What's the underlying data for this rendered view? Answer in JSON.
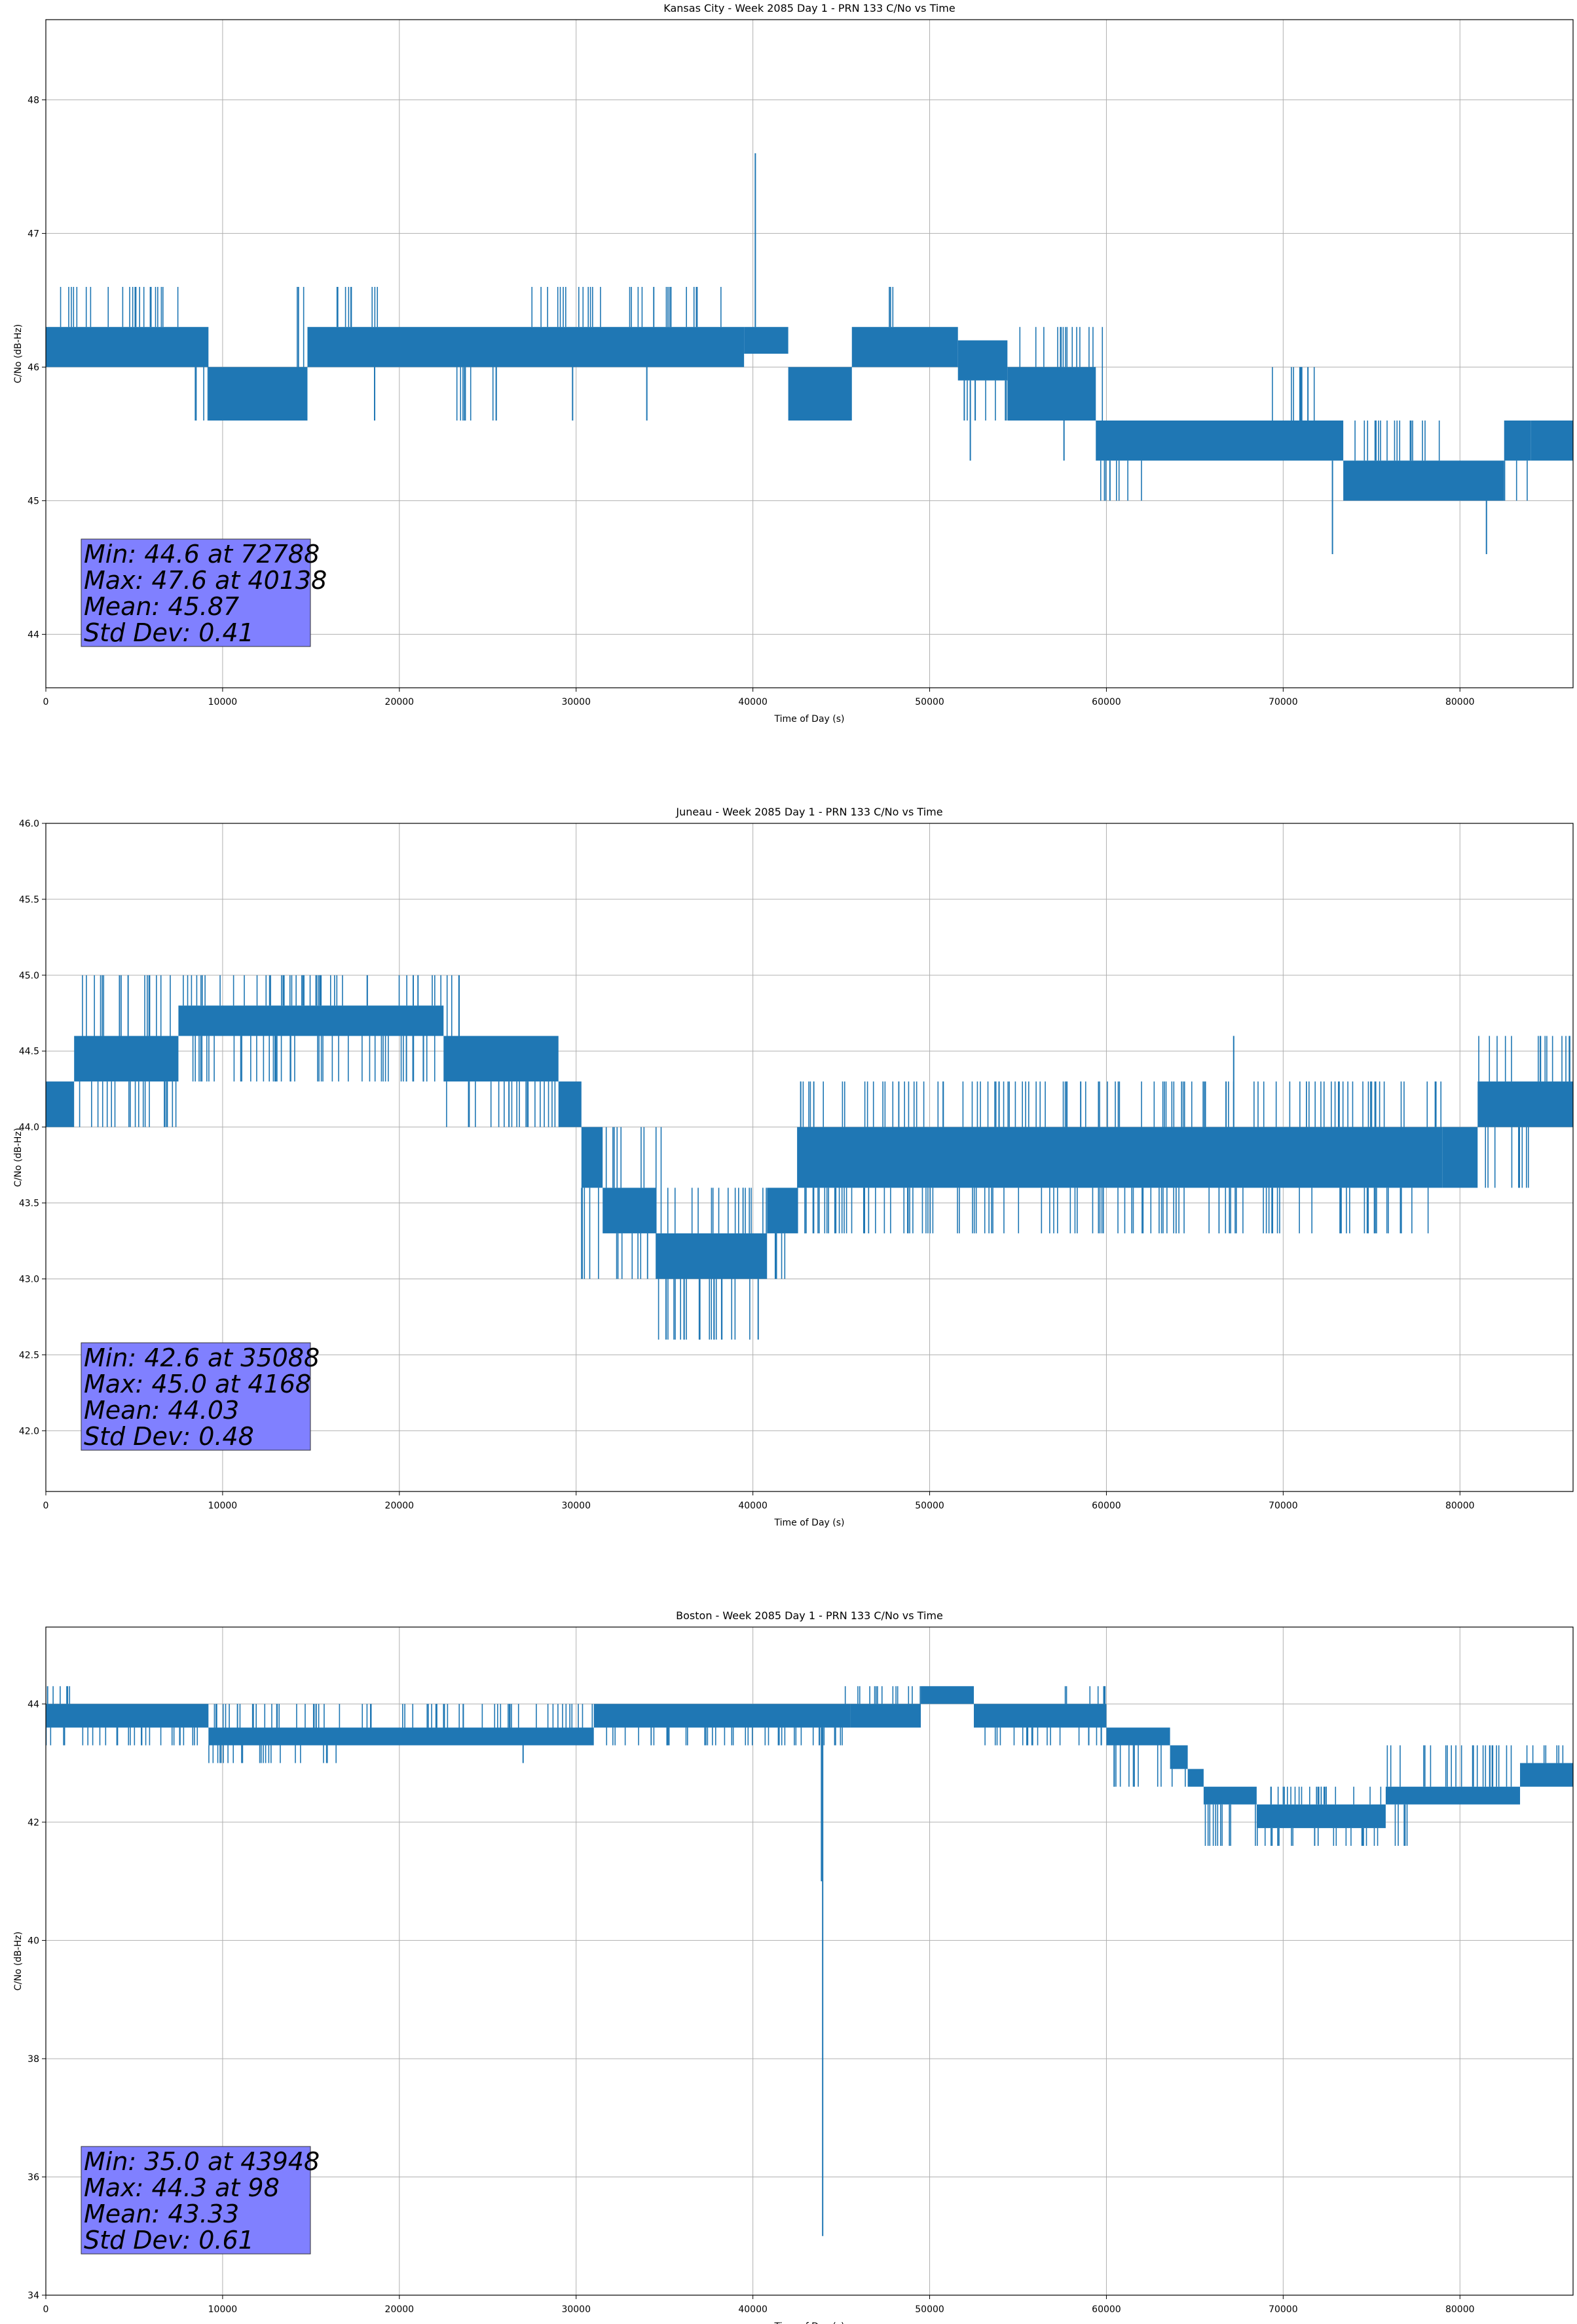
{
  "chart_data": [
    {
      "type": "line",
      "title": "Kansas City - Week 2085 Day 1 - PRN 133 C/No vs Time",
      "xlabel": "Time of Day (s)",
      "ylabel": "C/No (dB-Hz)",
      "xlim": [
        0,
        86400
      ],
      "ylim": [
        43.6,
        48.6
      ],
      "xticks": [
        0,
        10000,
        20000,
        30000,
        40000,
        50000,
        60000,
        70000,
        80000
      ],
      "yticks": [
        44,
        45,
        46,
        47,
        48
      ],
      "ytick_labels": [
        "44",
        "45",
        "46",
        "47",
        "48"
      ],
      "grid": true,
      "line_color": "#1f77b4",
      "stats": {
        "box_color": "#8080ff",
        "lines": [
          "Min: 44.6 at 72788",
          "Max: 47.6 at 40138",
          "Mean: 45.87",
          "Std Dev: 0.41"
        ]
      },
      "series": [
        {
          "bands": [
            {
              "x0": 0,
              "x1": 9200,
              "lo": 46.0,
              "hi": 46.3
            },
            {
              "x0": 9200,
              "x1": 14800,
              "lo": 45.6,
              "hi": 46.0
            },
            {
              "x0": 14800,
              "x1": 39500,
              "lo": 46.0,
              "hi": 46.3
            },
            {
              "x0": 39500,
              "x1": 42000,
              "lo": 46.1,
              "hi": 46.3
            },
            {
              "x0": 42000,
              "x1": 45600,
              "lo": 45.6,
              "hi": 46.0
            },
            {
              "x0": 45600,
              "x1": 51600,
              "lo": 46.0,
              "hi": 46.3
            },
            {
              "x0": 51600,
              "x1": 54400,
              "lo": 45.9,
              "hi": 46.2
            },
            {
              "x0": 54400,
              "x1": 59400,
              "lo": 45.6,
              "hi": 46.0
            },
            {
              "x0": 59400,
              "x1": 73400,
              "lo": 45.3,
              "hi": 45.6
            },
            {
              "x0": 73400,
              "x1": 82500,
              "lo": 45.0,
              "hi": 45.3
            },
            {
              "x0": 82500,
              "x1": 84000,
              "lo": 45.3,
              "hi": 45.6
            },
            {
              "x0": 84000,
              "x1": 86400,
              "lo": 45.3,
              "hi": 45.6
            }
          ],
          "upper_noise": [
            {
              "x0": 0,
              "x1": 7500,
              "v": 46.6
            },
            {
              "x0": 14000,
              "x1": 14800,
              "v": 46.6
            },
            {
              "x0": 16000,
              "x1": 19000,
              "v": 46.6
            },
            {
              "x0": 27000,
              "x1": 31500,
              "v": 46.6
            },
            {
              "x0": 33000,
              "x1": 38500,
              "v": 46.6
            },
            {
              "x0": 47500,
              "x1": 48500,
              "v": 46.6
            },
            {
              "x0": 55000,
              "x1": 60000,
              "v": 46.3
            },
            {
              "x0": 59400,
              "x1": 73400,
              "v": 45.6
            },
            {
              "x0": 69000,
              "x1": 72000,
              "v": 46.0
            },
            {
              "x0": 73400,
              "x1": 79000,
              "v": 45.6
            }
          ],
          "lower_noise": [
            {
              "x0": 0,
              "x1": 9200,
              "v": 46.0
            },
            {
              "x0": 8200,
              "x1": 9200,
              "v": 45.6
            },
            {
              "x0": 14800,
              "x1": 39500,
              "v": 46.0
            },
            {
              "x0": 23000,
              "x1": 26000,
              "v": 45.6
            },
            {
              "x0": 51600,
              "x1": 60000,
              "v": 45.6
            },
            {
              "x0": 59400,
              "x1": 73400,
              "v": 45.3
            },
            {
              "x0": 59600,
              "x1": 62000,
              "v": 45.0
            },
            {
              "x0": 73400,
              "x1": 84000,
              "v": 45.0
            }
          ],
          "spikes": [
            {
              "x": 40138,
              "v": 47.6
            },
            {
              "x": 72788,
              "v": 44.6
            },
            {
              "x": 81500,
              "v": 44.6
            },
            {
              "x": 29800,
              "v": 45.6
            },
            {
              "x": 18600,
              "v": 45.6
            },
            {
              "x": 34000,
              "v": 45.6
            },
            {
              "x": 52300,
              "v": 45.3
            },
            {
              "x": 57600,
              "v": 45.3
            },
            {
              "x": 60200,
              "v": 45.0
            },
            {
              "x": 71400,
              "v": 46.0
            }
          ]
        }
      ]
    },
    {
      "type": "line",
      "title": "Juneau - Week 2085 Day 1 - PRN 133 C/No vs Time",
      "xlabel": "Time of Day (s)",
      "ylabel": "C/No (dB-Hz)",
      "xlim": [
        0,
        86400
      ],
      "ylim": [
        41.6,
        46.0
      ],
      "xticks": [
        0,
        10000,
        20000,
        30000,
        40000,
        50000,
        60000,
        70000,
        80000
      ],
      "yticks": [
        42.0,
        42.5,
        43.0,
        43.5,
        44.0,
        44.5,
        45.0,
        45.5,
        46.0
      ],
      "ytick_labels": [
        "42.0",
        "42.5",
        "43.0",
        "43.5",
        "44.0",
        "44.5",
        "45.0",
        "45.5",
        "46.0"
      ],
      "grid": true,
      "line_color": "#1f77b4",
      "stats": {
        "box_color": "#8080ff",
        "lines": [
          "Min: 42.6 at 35088",
          "Max: 45.0 at 4168",
          "Mean: 44.03",
          "Std Dev: 0.48"
        ]
      },
      "series": [
        {
          "bands": [
            {
              "x0": 0,
              "x1": 1600,
              "lo": 44.0,
              "hi": 44.3
            },
            {
              "x0": 1600,
              "x1": 7500,
              "lo": 44.3,
              "hi": 44.6
            },
            {
              "x0": 7500,
              "x1": 22500,
              "lo": 44.6,
              "hi": 44.8
            },
            {
              "x0": 22500,
              "x1": 29000,
              "lo": 44.3,
              "hi": 44.6
            },
            {
              "x0": 29000,
              "x1": 30300,
              "lo": 44.0,
              "hi": 44.3
            },
            {
              "x0": 30300,
              "x1": 31500,
              "lo": 43.6,
              "hi": 44.0
            },
            {
              "x0": 31500,
              "x1": 34500,
              "lo": 43.3,
              "hi": 43.6
            },
            {
              "x0": 34500,
              "x1": 40800,
              "lo": 43.0,
              "hi": 43.3
            },
            {
              "x0": 40800,
              "x1": 42500,
              "lo": 43.3,
              "hi": 43.6
            },
            {
              "x0": 42500,
              "x1": 79000,
              "lo": 43.6,
              "hi": 44.0
            },
            {
              "x0": 79000,
              "x1": 81000,
              "lo": 43.6,
              "hi": 44.0
            },
            {
              "x0": 81000,
              "x1": 86400,
              "lo": 44.0,
              "hi": 44.3
            }
          ],
          "upper_noise": [
            {
              "x0": 2000,
              "x1": 7500,
              "v": 45.0
            },
            {
              "x0": 7500,
              "x1": 24000,
              "v": 45.0
            },
            {
              "x0": 24000,
              "x1": 29000,
              "v": 44.6
            },
            {
              "x0": 30300,
              "x1": 35000,
              "v": 44.0
            },
            {
              "x0": 35000,
              "x1": 41000,
              "v": 43.6
            },
            {
              "x0": 42500,
              "x1": 79000,
              "v": 44.3
            },
            {
              "x0": 81000,
              "x1": 86400,
              "v": 44.6
            }
          ],
          "lower_noise": [
            {
              "x0": 0,
              "x1": 7500,
              "v": 44.0
            },
            {
              "x0": 7500,
              "x1": 22500,
              "v": 44.3
            },
            {
              "x0": 22500,
              "x1": 29000,
              "v": 44.0
            },
            {
              "x0": 30300,
              "x1": 34500,
              "v": 43.0
            },
            {
              "x0": 34500,
              "x1": 40800,
              "v": 42.6
            },
            {
              "x0": 40800,
              "x1": 42500,
              "v": 43.0
            },
            {
              "x0": 42500,
              "x1": 79000,
              "v": 43.3
            },
            {
              "x0": 81000,
              "x1": 84000,
              "v": 43.6
            }
          ],
          "spikes": [
            {
              "x": 35088,
              "v": 42.6
            },
            {
              "x": 40300,
              "v": 42.6
            },
            {
              "x": 37800,
              "v": 42.6
            },
            {
              "x": 67200,
              "v": 44.6
            },
            {
              "x": 4168,
              "v": 45.0
            },
            {
              "x": 26200,
              "v": 44.0
            },
            {
              "x": 20400,
              "v": 44.3
            }
          ]
        }
      ]
    },
    {
      "type": "line",
      "title": "Boston - Week 2085 Day 1 - PRN 133 C/No vs Time",
      "xlabel": "Time of Day (s)",
      "ylabel": "C/No (dB-Hz)",
      "xlim": [
        0,
        86400
      ],
      "ylim": [
        34.0,
        45.3
      ],
      "xticks": [
        0,
        10000,
        20000,
        30000,
        40000,
        50000,
        60000,
        70000,
        80000
      ],
      "yticks": [
        34,
        36,
        38,
        40,
        42,
        44
      ],
      "ytick_labels": [
        "34",
        "36",
        "38",
        "40",
        "42",
        "44"
      ],
      "grid": true,
      "line_color": "#1f77b4",
      "stats": {
        "box_color": "#8080ff",
        "lines": [
          "Min: 35.0 at 43948",
          "Max: 44.3 at 98",
          "Mean: 43.33",
          "Std Dev: 0.61"
        ]
      },
      "series": [
        {
          "bands": [
            {
              "x0": 0,
              "x1": 9200,
              "lo": 43.6,
              "hi": 44.0
            },
            {
              "x0": 9200,
              "x1": 31000,
              "lo": 43.3,
              "hi": 43.6
            },
            {
              "x0": 31000,
              "x1": 45500,
              "lo": 43.6,
              "hi": 44.0
            },
            {
              "x0": 45500,
              "x1": 49500,
              "lo": 43.6,
              "hi": 44.0
            },
            {
              "x0": 49500,
              "x1": 52500,
              "lo": 44.0,
              "hi": 44.3
            },
            {
              "x0": 52500,
              "x1": 60000,
              "lo": 43.6,
              "hi": 44.0
            },
            {
              "x0": 60000,
              "x1": 63600,
              "lo": 43.3,
              "hi": 43.6
            },
            {
              "x0": 63600,
              "x1": 64600,
              "lo": 42.9,
              "hi": 43.3
            },
            {
              "x0": 64600,
              "x1": 65500,
              "lo": 42.6,
              "hi": 42.9
            },
            {
              "x0": 65500,
              "x1": 68500,
              "lo": 42.3,
              "hi": 42.6
            },
            {
              "x0": 68500,
              "x1": 75800,
              "lo": 41.9,
              "hi": 42.3
            },
            {
              "x0": 75800,
              "x1": 83400,
              "lo": 42.3,
              "hi": 42.6
            },
            {
              "x0": 83400,
              "x1": 86400,
              "lo": 42.6,
              "hi": 43.0
            }
          ],
          "upper_noise": [
            {
              "x0": 0,
              "x1": 1800,
              "v": 44.3
            },
            {
              "x0": 9200,
              "x1": 31000,
              "v": 44.0
            },
            {
              "x0": 45000,
              "x1": 50000,
              "v": 44.3
            },
            {
              "x0": 57500,
              "x1": 60000,
              "v": 44.3
            },
            {
              "x0": 65500,
              "x1": 75800,
              "v": 42.6
            },
            {
              "x0": 75800,
              "x1": 86400,
              "v": 43.3
            }
          ],
          "lower_noise": [
            {
              "x0": 0,
              "x1": 9200,
              "v": 43.3
            },
            {
              "x0": 9200,
              "x1": 17000,
              "v": 43.0
            },
            {
              "x0": 31000,
              "x1": 45500,
              "v": 43.3
            },
            {
              "x0": 52500,
              "x1": 60000,
              "v": 43.3
            },
            {
              "x0": 60000,
              "x1": 65500,
              "v": 42.6
            },
            {
              "x0": 65500,
              "x1": 77500,
              "v": 41.6
            },
            {
              "x0": 75800,
              "x1": 83400,
              "v": 42.3
            }
          ],
          "spikes": [
            {
              "x": 43948,
              "v": 35.0
            },
            {
              "x": 43880,
              "v": 41.0
            },
            {
              "x": 98,
              "v": 44.3
            },
            {
              "x": 27000,
              "v": 43.0
            },
            {
              "x": 69700,
              "v": 41.6
            },
            {
              "x": 74500,
              "v": 41.6
            }
          ]
        }
      ]
    }
  ]
}
